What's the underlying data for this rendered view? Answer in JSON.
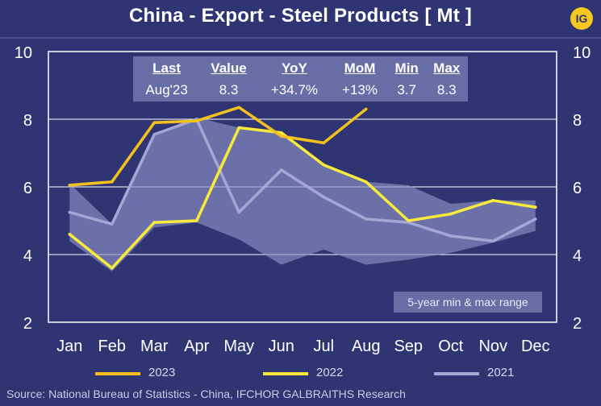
{
  "header": {
    "title": "China - Export - Steel Products [ Mt ]",
    "logo_text": "IG"
  },
  "stats_table": {
    "headers": [
      "Last",
      "Value",
      "YoY",
      "MoM",
      "Min",
      "Max"
    ],
    "values": [
      "Aug'23",
      "8.3",
      "+34.7%",
      "+13%",
      "3.7",
      "8.3"
    ]
  },
  "range_note": "5-year min & max range",
  "source": "Source: National Bureau of Statistics - China, IFCHOR GALBRAITHS Research",
  "colors": {
    "background": "#2f3573",
    "series_2023": "#f2c21b",
    "series_2022": "#f7ea3c",
    "series_2021": "#a4a7d4",
    "range_band": "#8d90c4",
    "grid": "#ffffff"
  },
  "chart_data": {
    "type": "line",
    "title": "China - Export - Steel Products [ Mt ]",
    "xlabel": "",
    "ylabel": "",
    "categories": [
      "Jan",
      "Feb",
      "Mar",
      "Apr",
      "May",
      "Jun",
      "Jul",
      "Aug",
      "Sep",
      "Oct",
      "Nov",
      "Dec"
    ],
    "ylim": [
      2,
      10
    ],
    "yticks": [
      2,
      4,
      6,
      8,
      10
    ],
    "grid": true,
    "legend_position": "bottom",
    "series": [
      {
        "name": "2023",
        "values": [
          6.05,
          6.15,
          7.9,
          7.95,
          8.35,
          7.5,
          7.3,
          8.3,
          null,
          null,
          null,
          null
        ]
      },
      {
        "name": "2022",
        "values": [
          4.6,
          3.6,
          4.95,
          5.0,
          7.75,
          7.6,
          6.65,
          6.15,
          5.0,
          5.2,
          5.6,
          5.4
        ]
      },
      {
        "name": "2021",
        "values": [
          5.25,
          4.9,
          7.55,
          8.0,
          5.25,
          6.5,
          5.7,
          5.05,
          4.95,
          4.55,
          4.4,
          5.05
        ]
      }
    ],
    "range_band": {
      "label": "5-year min & max range",
      "min": [
        4.4,
        3.5,
        4.8,
        4.95,
        4.45,
        3.7,
        4.15,
        3.7,
        3.85,
        4.05,
        4.35,
        4.7
      ],
      "max": [
        6.1,
        4.9,
        7.55,
        8.05,
        7.75,
        7.6,
        6.65,
        6.15,
        6.05,
        5.5,
        5.6,
        5.6
      ]
    }
  }
}
